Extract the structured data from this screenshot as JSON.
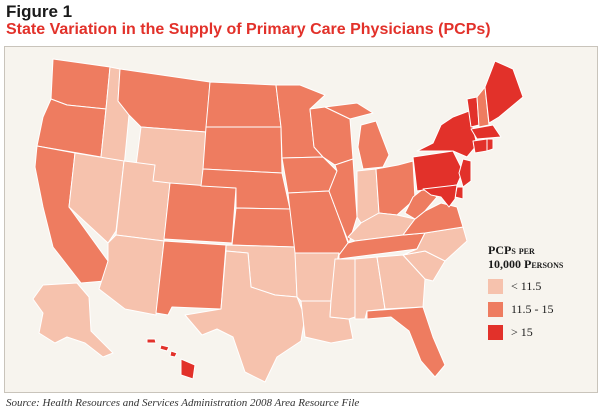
{
  "figure": {
    "label": "Figure 1",
    "title": "State Variation in the Supply of Primary Care Physicians (PCPs)"
  },
  "legend": {
    "title_line1": "PCPs per",
    "title_line2": "10,000 Persons",
    "items": [
      {
        "label": "< 11.5",
        "color": "#f6c2ad"
      },
      {
        "label": "11.5 - 15",
        "color": "#ee7c60"
      },
      {
        "label": "> 15",
        "color": "#e2312a"
      }
    ]
  },
  "colors": {
    "low": "#f6c2ad",
    "mid": "#ee7c60",
    "high": "#e2312a",
    "water": "#f7f4ee",
    "border": "#ffffff"
  },
  "states": {
    "WA": "mid",
    "OR": "mid",
    "CA": "mid",
    "ID": "low",
    "NV": "low",
    "MT": "mid",
    "WY": "low",
    "UT": "low",
    "AZ": "low",
    "CO": "mid",
    "NM": "mid",
    "ND": "mid",
    "SD": "mid",
    "NE": "mid",
    "KS": "mid",
    "OK": "low",
    "TX": "low",
    "MN": "mid",
    "IA": "mid",
    "MO": "mid",
    "AR": "low",
    "LA": "low",
    "WI": "mid",
    "IL": "mid",
    "MI": "mid",
    "IN": "low",
    "OH": "mid",
    "KY": "low",
    "TN": "mid",
    "MS": "low",
    "AL": "low",
    "GA": "low",
    "FL": "mid",
    "SC": "low",
    "NC": "low",
    "VA": "mid",
    "WV": "mid",
    "PA": "high",
    "NY": "high",
    "VT": "high",
    "NH": "mid",
    "ME": "high",
    "MA": "high",
    "CT": "high",
    "RI": "high",
    "NJ": "high",
    "DE": "high",
    "MD": "high",
    "AK": "low",
    "HI": "high"
  },
  "source": "Source: Health Resources and Services Administration 2008 Area Resource File"
}
